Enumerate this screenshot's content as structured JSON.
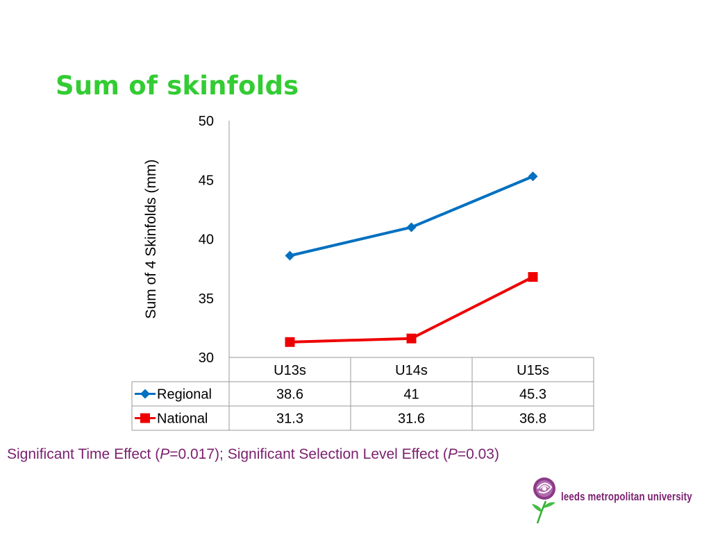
{
  "slide": {
    "title": "Sum of skinfolds",
    "note_prefix": "Significant Time Effect (",
    "note_p1": "P",
    "note_mid1": "=0.017); Significant Selection Level Effect (",
    "note_p2": "P",
    "note_suffix": "=0.03)",
    "logo_text": "leeds metropolitan university"
  },
  "colors": {
    "title": "#33cc33",
    "note": "#7a1f6e",
    "regional": "#0070c0",
    "national": "#ee0000"
  },
  "chart_data": {
    "type": "line",
    "title": "",
    "xlabel": "",
    "ylabel": "Sum of 4 Skinfolds (mm)",
    "categories": [
      "U13s",
      "U14s",
      "U15s"
    ],
    "ylim": [
      30,
      50
    ],
    "yticks": [
      30,
      35,
      40,
      45,
      50
    ],
    "grid": false,
    "legend": "data-table",
    "series": [
      {
        "name": "Regional",
        "values": [
          38.6,
          41,
          45.3
        ],
        "marker": "diamond",
        "color": "#0070c0"
      },
      {
        "name": "National",
        "values": [
          31.3,
          31.6,
          36.8
        ],
        "marker": "square",
        "color": "#ee0000"
      }
    ],
    "table_values": [
      [
        "38.6",
        "41",
        "45.3"
      ],
      [
        "31.3",
        "31.6",
        "36.8"
      ]
    ]
  }
}
